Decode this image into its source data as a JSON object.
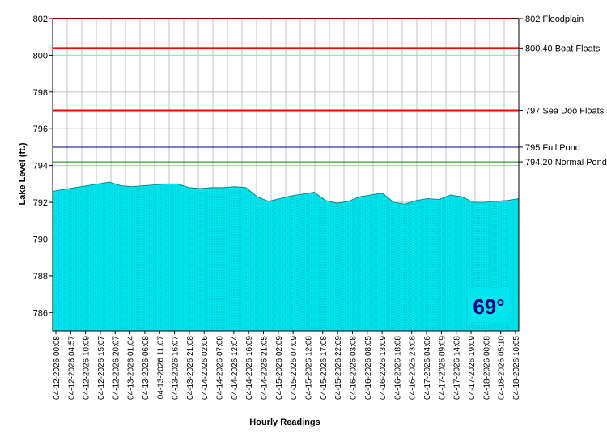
{
  "chart_data": {
    "type": "area",
    "xlabel": "Hourly Readings",
    "ylabel": "Lake Level (ft.)",
    "ylim": [
      785,
      802
    ],
    "y_ticks": [
      786,
      788,
      790,
      792,
      794,
      796,
      798,
      800,
      802
    ],
    "grid": true,
    "fill_color": "#00e5ee",
    "x_ticks": [
      "04-12-2026 00:08",
      "04-12-2026 04:57",
      "04-12-2026 10:09",
      "04-12-2026 15:07",
      "04-12-2026 20:07",
      "04-13-2026 01:04",
      "04-13-2026 06:08",
      "04-13-2026 11:07",
      "04-13-2026 16:07",
      "04-13-2026 21:08",
      "04-14-2026 02:06",
      "04-14-2026 07:08",
      "04-14-2026 12:04",
      "04-14-2026 16:09",
      "04-14-2026 21:05",
      "04-15-2026 02:09",
      "04-15-2026 07:09",
      "04-15-2026 12:08",
      "04-15-2026 17:08",
      "04-15-2026 22:09",
      "04-16-2026 03:08",
      "04-16-2026 08:05",
      "04-16-2026 13:09",
      "04-16-2026 18:08",
      "04-16-2026 23:08",
      "04-17-2026 04:06",
      "04-17-2026 09:09",
      "04-17-2026 14:08",
      "04-17-2026 19:09",
      "04-18-2026 00:08",
      "04-18-2026 05:10",
      "04-18-2026 10:05"
    ],
    "series": [
      {
        "values": [
          792.6,
          792.7,
          792.8,
          792.9,
          793.0,
          793.1,
          792.9,
          792.85,
          792.9,
          792.95,
          793.0,
          793.0,
          792.8,
          792.75,
          792.8,
          792.8,
          792.85,
          792.8,
          792.3,
          792.05,
          792.2,
          792.35,
          792.45,
          792.55,
          792.1,
          791.95,
          792.05,
          792.3,
          792.4,
          792.5,
          792.0,
          791.9,
          792.1,
          792.2,
          792.15,
          792.4,
          792.3,
          792.0,
          792.0,
          792.05,
          792.1,
          792.2
        ]
      }
    ],
    "reference_lines": [
      {
        "value": 802,
        "label": "802 Floodplain",
        "color": "#ff0000"
      },
      {
        "value": 800.4,
        "label": "800.40 Boat Floats",
        "color": "#ff0000"
      },
      {
        "value": 797,
        "label": "797 Sea Doo Floats",
        "color": "#ff0000"
      },
      {
        "value": 795,
        "label": "795 Full Pond",
        "color": "#000080"
      },
      {
        "value": 794.2,
        "label": "794.20 Normal Pond",
        "color": "#008000"
      }
    ],
    "temperature": "69°"
  }
}
